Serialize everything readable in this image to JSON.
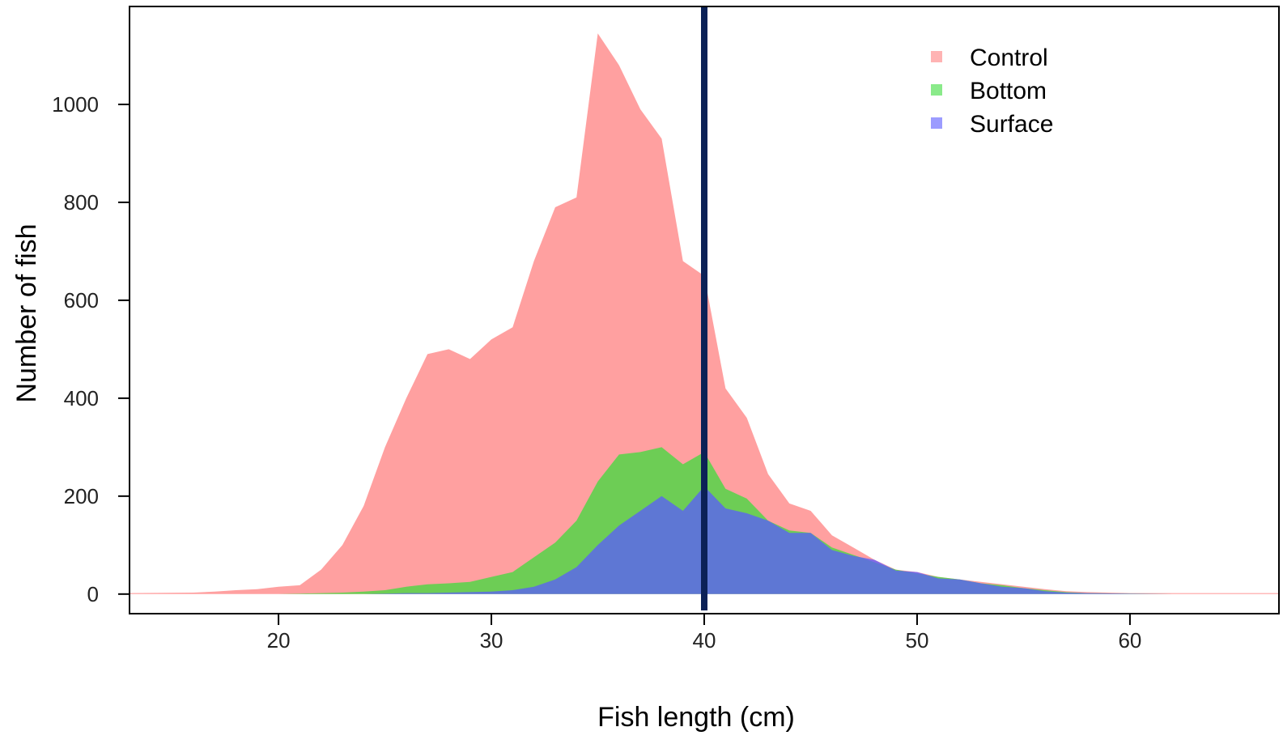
{
  "chart_data": {
    "type": "area",
    "title": "",
    "xlabel": "Fish length (cm)",
    "ylabel": "Number of fish",
    "xlim": [
      13,
      67
    ],
    "ylim": [
      -40,
      1200
    ],
    "xticks": [
      {
        "value": 20,
        "label": "20"
      },
      {
        "value": 30,
        "label": "30"
      },
      {
        "value": 40,
        "label": "40"
      },
      {
        "value": 50,
        "label": "50"
      },
      {
        "value": 60,
        "label": "60"
      }
    ],
    "yticks": [
      {
        "value": 0,
        "label": "0"
      },
      {
        "value": 200,
        "label": "200"
      },
      {
        "value": 400,
        "label": "400"
      },
      {
        "value": 600,
        "label": "600"
      },
      {
        "value": 800,
        "label": "800"
      },
      {
        "value": 1000,
        "label": "1000"
      }
    ],
    "vline": {
      "x": 40,
      "color": "#0b2157"
    },
    "legend": {
      "position": "top-right"
    },
    "series": [
      {
        "name": "Control",
        "color": "#ff8080",
        "x": [
          13,
          16,
          17,
          18,
          19,
          20,
          21,
          22,
          23,
          24,
          25,
          26,
          27,
          28,
          29,
          30,
          31,
          32,
          33,
          34,
          35,
          36,
          37,
          38,
          39,
          40,
          41,
          42,
          43,
          44,
          45,
          46,
          47,
          48,
          49,
          50,
          51,
          52,
          53,
          54,
          55,
          56,
          57,
          58,
          59,
          60,
          61,
          62,
          63,
          64,
          65,
          66,
          67
        ],
        "values": [
          2,
          3,
          5,
          8,
          10,
          15,
          18,
          50,
          100,
          180,
          300,
          400,
          490,
          500,
          480,
          520,
          545,
          680,
          790,
          810,
          1145,
          1080,
          990,
          930,
          680,
          650,
          420,
          360,
          245,
          185,
          170,
          120,
          95,
          70,
          50,
          45,
          35,
          30,
          25,
          20,
          15,
          10,
          6,
          4,
          3,
          2,
          2,
          2,
          2,
          2,
          2,
          2,
          2
        ]
      },
      {
        "name": "Bottom",
        "color": "#3cdc3c",
        "x": [
          13,
          16,
          18,
          20,
          21,
          22,
          23,
          24,
          25,
          26,
          27,
          28,
          29,
          30,
          31,
          32,
          33,
          34,
          35,
          36,
          37,
          38,
          39,
          40,
          41,
          42,
          43,
          44,
          45,
          46,
          47,
          48,
          49,
          50,
          51,
          52,
          53,
          54,
          55,
          56,
          57,
          58,
          60,
          62,
          64,
          67
        ],
        "values": [
          0,
          0,
          0,
          0,
          1,
          2,
          3,
          5,
          8,
          15,
          20,
          22,
          25,
          35,
          45,
          75,
          105,
          150,
          230,
          285,
          290,
          300,
          265,
          290,
          215,
          195,
          150,
          130,
          125,
          95,
          80,
          65,
          50,
          42,
          35,
          30,
          22,
          18,
          12,
          8,
          4,
          2,
          1,
          0,
          0,
          0
        ]
      },
      {
        "name": "Surface",
        "color": "#5a5aff",
        "x": [
          13,
          20,
          22,
          24,
          25,
          26,
          27,
          28,
          29,
          30,
          31,
          32,
          33,
          34,
          35,
          36,
          37,
          38,
          39,
          40,
          41,
          42,
          43,
          44,
          45,
          46,
          47,
          48,
          49,
          50,
          51,
          52,
          53,
          54,
          55,
          56,
          57,
          58,
          60,
          62,
          67
        ],
        "values": [
          0,
          0,
          0,
          0,
          1,
          2,
          2,
          3,
          4,
          5,
          8,
          15,
          30,
          55,
          100,
          140,
          170,
          200,
          170,
          220,
          175,
          165,
          150,
          125,
          125,
          90,
          78,
          70,
          48,
          45,
          32,
          30,
          22,
          15,
          12,
          6,
          3,
          2,
          1,
          0,
          0
        ]
      }
    ]
  }
}
